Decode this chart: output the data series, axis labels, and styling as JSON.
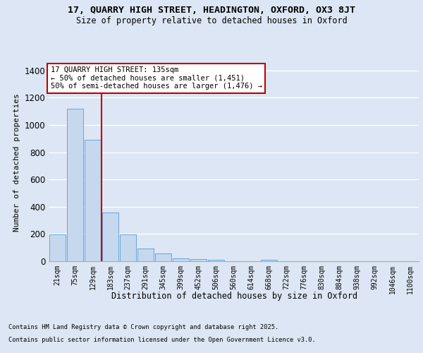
{
  "title_line1": "17, QUARRY HIGH STREET, HEADINGTON, OXFORD, OX3 8JT",
  "title_line2": "Size of property relative to detached houses in Oxford",
  "xlabel": "Distribution of detached houses by size in Oxford",
  "ylabel": "Number of detached properties",
  "categories": [
    "21sqm",
    "75sqm",
    "129sqm",
    "183sqm",
    "237sqm",
    "291sqm",
    "345sqm",
    "399sqm",
    "452sqm",
    "506sqm",
    "560sqm",
    "614sqm",
    "668sqm",
    "722sqm",
    "776sqm",
    "830sqm",
    "884sqm",
    "938sqm",
    "992sqm",
    "1046sqm",
    "1100sqm"
  ],
  "values": [
    197,
    1120,
    893,
    355,
    197,
    93,
    57,
    22,
    18,
    12,
    0,
    0,
    12,
    0,
    0,
    0,
    0,
    0,
    0,
    0,
    0
  ],
  "bar_color": "#c5d8ed",
  "bar_edge_color": "#5b9bd5",
  "vline_x_index": 2,
  "vline_color": "#c00000",
  "annotation_text": "17 QUARRY HIGH STREET: 135sqm\n← 50% of detached houses are smaller (1,451)\n50% of semi-detached houses are larger (1,476) →",
  "annotation_box_color": "#ffffff",
  "annotation_box_edge": "#c00000",
  "bg_color": "#dce6f4",
  "plot_bg_color": "#dce6f4",
  "grid_color": "#ffffff",
  "ylim": [
    0,
    1450
  ],
  "yticks": [
    0,
    200,
    400,
    600,
    800,
    1000,
    1200,
    1400
  ],
  "footer_line1": "Contains HM Land Registry data © Crown copyright and database right 2025.",
  "footer_line2": "Contains public sector information licensed under the Open Government Licence v3.0."
}
